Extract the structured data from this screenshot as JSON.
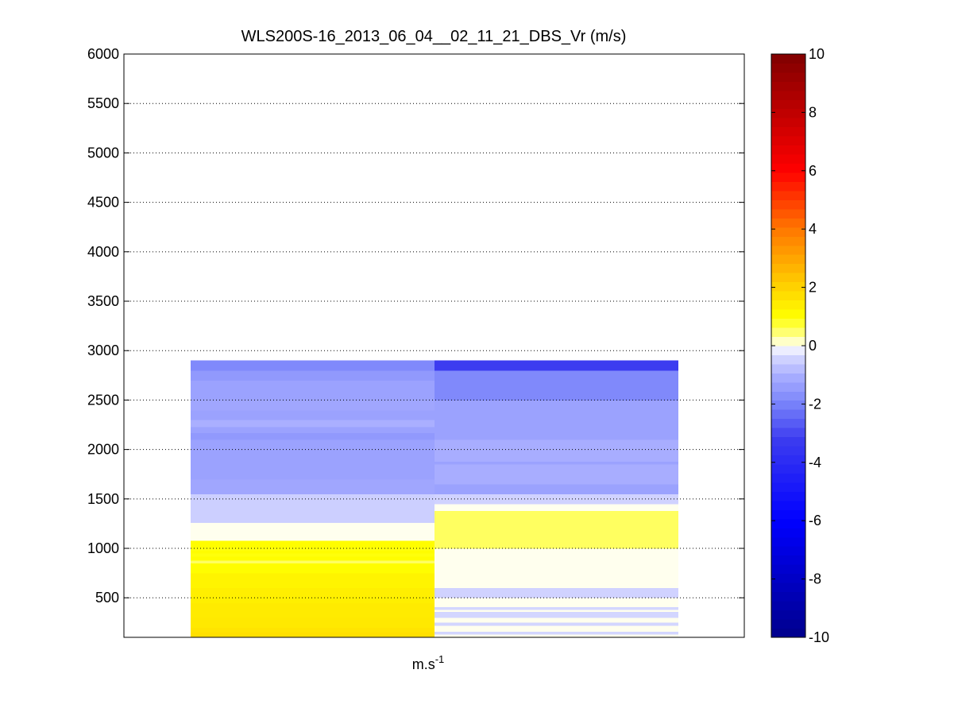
{
  "chart_data": {
    "type": "heatmap",
    "title": "WLS200S-16_2013_06_04__02_11_21_DBS_Vr (m/s)",
    "xlabel_base": "m.s",
    "xlabel_sup": "-1",
    "ylabel": "",
    "ylim": [
      100,
      6000
    ],
    "yticks": [
      500,
      1000,
      1500,
      2000,
      2500,
      3000,
      3500,
      4000,
      4500,
      5000,
      5500,
      6000
    ],
    "grid": "y-dotted",
    "colorbar": {
      "range": [
        -10,
        10
      ],
      "ticks": [
        -10,
        -8,
        -6,
        -4,
        -2,
        0,
        2,
        4,
        6,
        8,
        10
      ],
      "placement": "right",
      "colormap": "blue-white-yellow-red"
    },
    "columns": [
      {
        "segments": [
          {
            "from": 100,
            "to": 150,
            "v": 1.7
          },
          {
            "from": 150,
            "to": 200,
            "v": 1.6
          },
          {
            "from": 200,
            "to": 300,
            "v": 1.5
          },
          {
            "from": 300,
            "to": 450,
            "v": 1.45
          },
          {
            "from": 450,
            "to": 600,
            "v": 1.35
          },
          {
            "from": 600,
            "to": 750,
            "v": 1.25
          },
          {
            "from": 750,
            "to": 850,
            "v": 1.05
          },
          {
            "from": 850,
            "to": 880,
            "v": 0.55
          },
          {
            "from": 880,
            "to": 920,
            "v": 1.05
          },
          {
            "from": 920,
            "to": 950,
            "v": 0.95
          },
          {
            "from": 950,
            "to": 980,
            "v": 1.05
          },
          {
            "from": 980,
            "to": 1010,
            "v": 0.95
          },
          {
            "from": 1010,
            "to": 1080,
            "v": 1.05
          },
          {
            "from": 1080,
            "to": 1260,
            "v": 0.05
          },
          {
            "from": 1260,
            "to": 1550,
            "v": -0.5
          },
          {
            "from": 1550,
            "to": 1700,
            "v": -1.2
          },
          {
            "from": 1700,
            "to": 2100,
            "v": -1.3
          },
          {
            "from": 2100,
            "to": 2170,
            "v": -1.5
          },
          {
            "from": 2170,
            "to": 2230,
            "v": -1.3
          },
          {
            "from": 2230,
            "to": 2300,
            "v": -1.0
          },
          {
            "from": 2300,
            "to": 2400,
            "v": -1.3
          },
          {
            "from": 2400,
            "to": 2500,
            "v": -1.2
          },
          {
            "from": 2500,
            "to": 2700,
            "v": -1.3
          },
          {
            "from": 2700,
            "to": 2800,
            "v": -1.5
          },
          {
            "from": 2800,
            "to": 2900,
            "v": -1.85
          }
        ]
      },
      {
        "segments": [
          {
            "from": 100,
            "to": 130,
            "v": 0.05
          },
          {
            "from": 130,
            "to": 160,
            "v": -0.4
          },
          {
            "from": 160,
            "to": 220,
            "v": 0.05
          },
          {
            "from": 220,
            "to": 250,
            "v": -0.4
          },
          {
            "from": 250,
            "to": 300,
            "v": 0.05
          },
          {
            "from": 300,
            "to": 360,
            "v": -0.4
          },
          {
            "from": 360,
            "to": 380,
            "v": 0.05
          },
          {
            "from": 380,
            "to": 410,
            "v": -0.4
          },
          {
            "from": 410,
            "to": 500,
            "v": 0.05
          },
          {
            "from": 500,
            "to": 600,
            "v": -0.45
          },
          {
            "from": 600,
            "to": 1000,
            "v": 0.05
          },
          {
            "from": 1000,
            "to": 1380,
            "v": 0.55
          },
          {
            "from": 1380,
            "to": 1450,
            "v": 0.05
          },
          {
            "from": 1450,
            "to": 1550,
            "v": -0.45
          },
          {
            "from": 1550,
            "to": 1650,
            "v": -1.3
          },
          {
            "from": 1650,
            "to": 1850,
            "v": -1.05
          },
          {
            "from": 1850,
            "to": 1880,
            "v": -1.3
          },
          {
            "from": 1880,
            "to": 2100,
            "v": -1.05
          },
          {
            "from": 2100,
            "to": 2500,
            "v": -1.3
          },
          {
            "from": 2500,
            "to": 2800,
            "v": -1.85
          },
          {
            "from": 2800,
            "to": 2900,
            "v": -3.2
          }
        ]
      }
    ]
  }
}
